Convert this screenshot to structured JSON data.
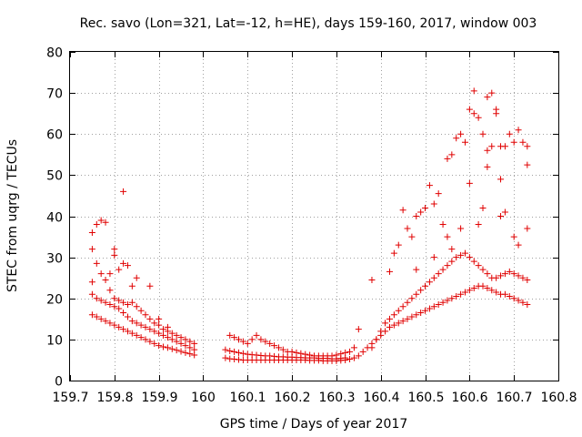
{
  "chart_data": {
    "type": "scatter",
    "title": "Rec. savo (Lon=321, Lat=-12, h=HE), days 159-160, 2017, window 003",
    "xlabel": "GPS time / Days of year 2017",
    "ylabel": "STEC from uqrg / TECUs",
    "xlim": [
      159.7,
      160.8
    ],
    "ylim": [
      0,
      80
    ],
    "xticks": [
      "159.7",
      "159.8",
      "159.9",
      "160",
      "160.1",
      "160.2",
      "160.3",
      "160.4",
      "160.5",
      "160.6",
      "160.7",
      "160.8"
    ],
    "yticks": [
      "0",
      "10",
      "20",
      "30",
      "40",
      "50",
      "60",
      "70",
      "80"
    ],
    "grid": true,
    "marker": "+",
    "color": "#e00000",
    "series": [
      {
        "points": [
          [
            159.75,
            36.0
          ],
          [
            159.75,
            32.0
          ],
          [
            159.76,
            38.0
          ],
          [
            159.77,
            39.0
          ],
          [
            159.78,
            38.5
          ],
          [
            159.8,
            32.0
          ],
          [
            159.8,
            30.5
          ],
          [
            159.82,
            46.0
          ],
          [
            159.82,
            28.5
          ],
          [
            159.83,
            28.0
          ],
          [
            159.84,
            23.0
          ],
          [
            159.75,
            24.0
          ],
          [
            159.76,
            28.5
          ],
          [
            159.77,
            26.0
          ],
          [
            159.78,
            24.5
          ],
          [
            159.79,
            22.0
          ],
          [
            159.8,
            20.0
          ],
          [
            159.81,
            19.5
          ],
          [
            159.82,
            19.0
          ],
          [
            159.83,
            18.5
          ],
          [
            159.84,
            19.0
          ],
          [
            159.85,
            18.0
          ],
          [
            159.86,
            17.0
          ],
          [
            159.87,
            16.0
          ],
          [
            159.88,
            15.0
          ],
          [
            159.89,
            14.0
          ],
          [
            159.9,
            13.5
          ],
          [
            159.91,
            12.5
          ],
          [
            159.92,
            12.0
          ],
          [
            159.93,
            11.5
          ],
          [
            159.94,
            11.0
          ],
          [
            159.95,
            10.5
          ],
          [
            159.96,
            10.0
          ],
          [
            159.97,
            9.5
          ],
          [
            159.98,
            9.0
          ],
          [
            159.75,
            21.0
          ],
          [
            159.76,
            20.0
          ],
          [
            159.77,
            19.5
          ],
          [
            159.78,
            19.0
          ],
          [
            159.79,
            18.5
          ],
          [
            159.8,
            18.0
          ],
          [
            159.81,
            17.5
          ],
          [
            159.82,
            16.5
          ],
          [
            159.83,
            15.5
          ],
          [
            159.84,
            14.5
          ],
          [
            159.85,
            14.0
          ],
          [
            159.86,
            13.5
          ],
          [
            159.87,
            13.0
          ],
          [
            159.88,
            12.5
          ],
          [
            159.89,
            12.0
          ],
          [
            159.9,
            11.5
          ],
          [
            159.91,
            11.0
          ],
          [
            159.92,
            10.5
          ],
          [
            159.93,
            10.0
          ],
          [
            159.94,
            9.5
          ],
          [
            159.95,
            9.0
          ],
          [
            159.96,
            8.5
          ],
          [
            159.97,
            8.0
          ],
          [
            159.98,
            7.5
          ],
          [
            159.75,
            16.0
          ],
          [
            159.76,
            15.5
          ],
          [
            159.77,
            15.0
          ],
          [
            159.78,
            14.5
          ],
          [
            159.79,
            14.0
          ],
          [
            159.8,
            13.5
          ],
          [
            159.81,
            13.0
          ],
          [
            159.82,
            12.5
          ],
          [
            159.83,
            12.0
          ],
          [
            159.84,
            11.5
          ],
          [
            159.85,
            11.0
          ],
          [
            159.86,
            10.5
          ],
          [
            159.87,
            10.0
          ],
          [
            159.88,
            9.5
          ],
          [
            159.89,
            9.0
          ],
          [
            159.9,
            8.5
          ],
          [
            159.91,
            8.2
          ],
          [
            159.92,
            8.0
          ],
          [
            159.93,
            7.7
          ],
          [
            159.94,
            7.4
          ],
          [
            159.95,
            7.1
          ],
          [
            159.96,
            6.8
          ],
          [
            159.97,
            6.5
          ],
          [
            159.98,
            6.2
          ],
          [
            159.79,
            26.0
          ],
          [
            159.81,
            27.0
          ],
          [
            159.85,
            25.0
          ],
          [
            159.88,
            23.0
          ],
          [
            159.9,
            15.0
          ],
          [
            159.92,
            13.0
          ],
          [
            160.06,
            11.0
          ],
          [
            160.07,
            10.5
          ],
          [
            160.08,
            10.0
          ],
          [
            160.09,
            9.5
          ],
          [
            160.1,
            9.0
          ],
          [
            160.11,
            10.0
          ],
          [
            160.12,
            11.0
          ],
          [
            160.13,
            10.0
          ],
          [
            160.14,
            9.5
          ],
          [
            160.15,
            9.0
          ],
          [
            160.16,
            8.5
          ],
          [
            160.17,
            8.0
          ],
          [
            160.18,
            7.5
          ],
          [
            160.19,
            7.0
          ],
          [
            160.2,
            7.0
          ],
          [
            160.21,
            6.8
          ],
          [
            160.22,
            6.6
          ],
          [
            160.23,
            6.4
          ],
          [
            160.24,
            6.2
          ],
          [
            160.25,
            6.0
          ],
          [
            160.26,
            6.0
          ],
          [
            160.27,
            6.0
          ],
          [
            160.28,
            6.0
          ],
          [
            160.29,
            6.0
          ],
          [
            160.3,
            6.2
          ],
          [
            160.31,
            6.5
          ],
          [
            160.32,
            6.8
          ],
          [
            160.33,
            7.0
          ],
          [
            160.34,
            8.0
          ],
          [
            160.35,
            12.5
          ],
          [
            160.05,
            7.5
          ],
          [
            160.06,
            7.2
          ],
          [
            160.07,
            7.0
          ],
          [
            160.08,
            6.8
          ],
          [
            160.09,
            6.6
          ],
          [
            160.1,
            6.4
          ],
          [
            160.11,
            6.3
          ],
          [
            160.12,
            6.2
          ],
          [
            160.13,
            6.1
          ],
          [
            160.14,
            6.0
          ],
          [
            160.15,
            6.0
          ],
          [
            160.16,
            5.9
          ],
          [
            160.17,
            5.8
          ],
          [
            160.18,
            5.8
          ],
          [
            160.19,
            5.7
          ],
          [
            160.2,
            5.7
          ],
          [
            160.21,
            5.6
          ],
          [
            160.22,
            5.6
          ],
          [
            160.23,
            5.5
          ],
          [
            160.24,
            5.5
          ],
          [
            160.25,
            5.5
          ],
          [
            160.26,
            5.4
          ],
          [
            160.27,
            5.4
          ],
          [
            160.28,
            5.4
          ],
          [
            160.29,
            5.3
          ],
          [
            160.3,
            5.3
          ],
          [
            160.31,
            5.4
          ],
          [
            160.32,
            5.5
          ],
          [
            160.05,
            5.5
          ],
          [
            160.06,
            5.3
          ],
          [
            160.07,
            5.2
          ],
          [
            160.08,
            5.1
          ],
          [
            160.09,
            5.0
          ],
          [
            160.1,
            5.0
          ],
          [
            160.11,
            5.0
          ],
          [
            160.12,
            5.0
          ],
          [
            160.13,
            5.0
          ],
          [
            160.14,
            5.0
          ],
          [
            160.15,
            5.0
          ],
          [
            160.16,
            5.0
          ],
          [
            160.17,
            5.0
          ],
          [
            160.18,
            5.0
          ],
          [
            160.19,
            5.0
          ],
          [
            160.2,
            5.0
          ],
          [
            160.21,
            5.0
          ],
          [
            160.22,
            5.0
          ],
          [
            160.23,
            5.0
          ],
          [
            160.24,
            4.9
          ],
          [
            160.25,
            4.9
          ],
          [
            160.26,
            4.9
          ],
          [
            160.27,
            4.8
          ],
          [
            160.28,
            4.8
          ],
          [
            160.29,
            4.8
          ],
          [
            160.3,
            4.8
          ],
          [
            160.31,
            4.9
          ],
          [
            160.32,
            5.0
          ],
          [
            160.33,
            5.2
          ],
          [
            160.34,
            5.5
          ],
          [
            160.35,
            6.0
          ],
          [
            160.36,
            7.0
          ],
          [
            160.37,
            8.0
          ],
          [
            160.38,
            9.0
          ],
          [
            160.39,
            10.0
          ],
          [
            160.4,
            11.0
          ],
          [
            160.41,
            12.0
          ],
          [
            160.42,
            13.0
          ],
          [
            160.43,
            13.5
          ],
          [
            160.44,
            14.0
          ],
          [
            160.45,
            14.5
          ],
          [
            160.46,
            15.0
          ],
          [
            160.47,
            15.5
          ],
          [
            160.48,
            16.0
          ],
          [
            160.49,
            16.5
          ],
          [
            160.5,
            17.0
          ],
          [
            160.51,
            17.5
          ],
          [
            160.52,
            18.0
          ],
          [
            160.53,
            18.5
          ],
          [
            160.54,
            19.0
          ],
          [
            160.55,
            19.5
          ],
          [
            160.56,
            20.0
          ],
          [
            160.57,
            20.5
          ],
          [
            160.58,
            21.0
          ],
          [
            160.59,
            21.5
          ],
          [
            160.6,
            22.0
          ],
          [
            160.61,
            22.5
          ],
          [
            160.62,
            23.0
          ],
          [
            160.63,
            23.0
          ],
          [
            160.64,
            22.5
          ],
          [
            160.65,
            22.0
          ],
          [
            160.66,
            21.5
          ],
          [
            160.67,
            21.0
          ],
          [
            160.68,
            21.0
          ],
          [
            160.69,
            20.5
          ],
          [
            160.7,
            20.0
          ],
          [
            160.71,
            19.5
          ],
          [
            160.72,
            19.0
          ],
          [
            160.73,
            18.5
          ],
          [
            160.38,
            8.0
          ],
          [
            160.39,
            10.0
          ],
          [
            160.4,
            12.0
          ],
          [
            160.41,
            14.0
          ],
          [
            160.42,
            15.0
          ],
          [
            160.43,
            16.0
          ],
          [
            160.44,
            17.0
          ],
          [
            160.45,
            18.0
          ],
          [
            160.46,
            19.0
          ],
          [
            160.47,
            20.0
          ],
          [
            160.48,
            21.0
          ],
          [
            160.49,
            22.0
          ],
          [
            160.5,
            23.0
          ],
          [
            160.51,
            24.0
          ],
          [
            160.52,
            25.0
          ],
          [
            160.53,
            26.0
          ],
          [
            160.54,
            27.0
          ],
          [
            160.55,
            28.0
          ],
          [
            160.56,
            29.0
          ],
          [
            160.57,
            30.0
          ],
          [
            160.58,
            30.5
          ],
          [
            160.59,
            31.0
          ],
          [
            160.6,
            30.0
          ],
          [
            160.61,
            29.0
          ],
          [
            160.62,
            28.0
          ],
          [
            160.63,
            27.0
          ],
          [
            160.64,
            26.0
          ],
          [
            160.65,
            25.0
          ],
          [
            160.66,
            25.0
          ],
          [
            160.67,
            25.5
          ],
          [
            160.68,
            26.0
          ],
          [
            160.69,
            26.5
          ],
          [
            160.7,
            26.0
          ],
          [
            160.71,
            25.5
          ],
          [
            160.72,
            25.0
          ],
          [
            160.73,
            24.5
          ],
          [
            160.38,
            24.5
          ],
          [
            160.42,
            26.5
          ],
          [
            160.43,
            31.0
          ],
          [
            160.44,
            33.0
          ],
          [
            160.45,
            41.5
          ],
          [
            160.46,
            37.0
          ],
          [
            160.47,
            35.0
          ],
          [
            160.48,
            40.0
          ],
          [
            160.49,
            41.0
          ],
          [
            160.5,
            42.0
          ],
          [
            160.51,
            47.5
          ],
          [
            160.52,
            43.0
          ],
          [
            160.53,
            45.5
          ],
          [
            160.54,
            38.0
          ],
          [
            160.55,
            54.0
          ],
          [
            160.56,
            55.0
          ],
          [
            160.57,
            59.0
          ],
          [
            160.58,
            60.0
          ],
          [
            160.59,
            58.0
          ],
          [
            160.6,
            66.0
          ],
          [
            160.61,
            65.0
          ],
          [
            160.62,
            64.0
          ],
          [
            160.63,
            60.0
          ],
          [
            160.64,
            56.0
          ],
          [
            160.65,
            57.0
          ],
          [
            160.66,
            66.0
          ],
          [
            160.67,
            57.0
          ],
          [
            160.68,
            57.0
          ],
          [
            160.69,
            60.0
          ],
          [
            160.7,
            58.0
          ],
          [
            160.71,
            61.0
          ],
          [
            160.72,
            58.0
          ],
          [
            160.73,
            57.0
          ],
          [
            160.61,
            70.5
          ],
          [
            160.64,
            69.0
          ],
          [
            160.65,
            70.0
          ],
          [
            160.66,
            65.0
          ],
          [
            160.64,
            52.0
          ],
          [
            160.67,
            49.0
          ],
          [
            160.73,
            52.5
          ],
          [
            160.6,
            48.0
          ],
          [
            160.63,
            42.0
          ],
          [
            160.67,
            40.0
          ],
          [
            160.7,
            35.0
          ],
          [
            160.73,
            37.0
          ],
          [
            160.58,
            37.0
          ],
          [
            160.55,
            35.0
          ],
          [
            160.62,
            38.0
          ],
          [
            160.68,
            41.0
          ],
          [
            160.71,
            33.0
          ],
          [
            160.48,
            27.0
          ],
          [
            160.52,
            30.0
          ],
          [
            160.56,
            32.0
          ]
        ]
      }
    ]
  }
}
